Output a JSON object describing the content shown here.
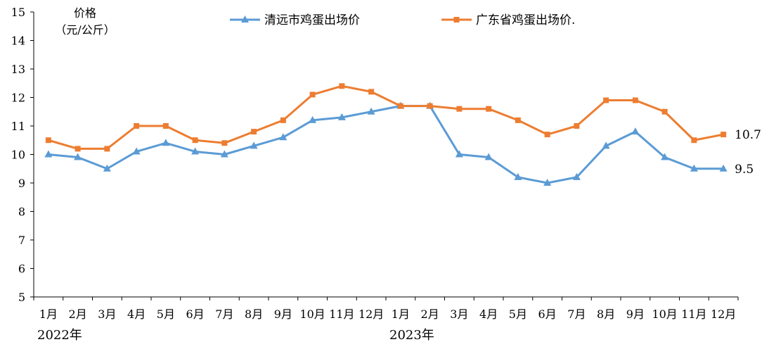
{
  "chart_data": {
    "type": "line",
    "title": "",
    "ylabel_line1": "价格",
    "ylabel_line2": "（元/公斤）",
    "ylim": [
      5,
      15
    ],
    "yticks": [
      5,
      6,
      7,
      8,
      9,
      10,
      11,
      12,
      13,
      14,
      15
    ],
    "categories": [
      "1月",
      "2月",
      "3月",
      "4月",
      "5月",
      "6月",
      "7月",
      "8月",
      "9月",
      "10月",
      "11月",
      "12月",
      "1月",
      "2月",
      "3月",
      "4月",
      "5月",
      "6月",
      "7月",
      "8月",
      "9月",
      "10月",
      "11月",
      "12月"
    ],
    "year_labels": [
      {
        "text": "2022年",
        "category_index": 0
      },
      {
        "text": "2023年",
        "category_index": 12
      }
    ],
    "series": [
      {
        "name": "清远市鸡蛋出场价",
        "color": "#5B9BD5",
        "marker": "triangle",
        "values": [
          10.0,
          9.9,
          9.5,
          10.1,
          10.4,
          10.1,
          10.0,
          10.3,
          10.6,
          11.2,
          11.3,
          11.5,
          11.7,
          11.7,
          10.0,
          9.9,
          9.2,
          9.0,
          9.2,
          10.3,
          10.8,
          9.9,
          9.5,
          9.5
        ],
        "end_label": "9.5"
      },
      {
        "name": "广东省鸡蛋出场价.",
        "color": "#ED7D31",
        "marker": "square",
        "values": [
          10.5,
          10.2,
          10.2,
          11.0,
          11.0,
          10.5,
          10.4,
          10.8,
          11.2,
          12.1,
          12.4,
          12.2,
          11.7,
          11.7,
          11.6,
          11.6,
          11.2,
          10.7,
          11.0,
          11.9,
          11.9,
          11.5,
          10.5,
          10.7
        ],
        "end_label": "10.7"
      }
    ],
    "legend_position": "top-center",
    "grid": false
  }
}
